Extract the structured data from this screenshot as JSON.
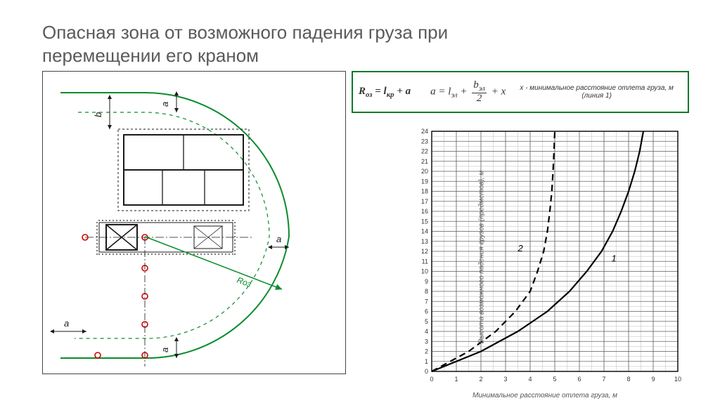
{
  "title": "Опасная зона от возможного падения груза при перемещении его краном",
  "formula_box": {
    "border_color": "#0a7a2a",
    "formula1_html": "R<span class='sub'>оз</span> = l<span class='sub'>кр</span> + a",
    "formula2_html": "a = l<span class='sub'>эл</span> + <span class='frac'><span class='n'>b<span class='sub'>эл</span></span><span class='d'>2</span></span> + x",
    "note": "x - минимальное расстояние отлета груза, м (линия 1)"
  },
  "plan": {
    "stroke": "#1a1a1a",
    "green": "#0a8c2e",
    "dim_label_a": "a",
    "dim_label_b": "b",
    "dim_label_roz": "Rоз",
    "marker_color": "#c00"
  },
  "chart": {
    "type": "line",
    "grid_color": "#666",
    "minor_grid_color": "#aaa",
    "background": "#ffffff",
    "x_label": "Минимальное расстояние отлета груза, м",
    "y_label": "Высота возможного падения грузов (предметов), м",
    "xlim": [
      0,
      10
    ],
    "ylim": [
      0,
      24
    ],
    "xticks": [
      0,
      1,
      2,
      3,
      4,
      5,
      6,
      7,
      8,
      9,
      10
    ],
    "yticks": [
      0,
      1,
      2,
      3,
      4,
      5,
      6,
      7,
      8,
      9,
      10,
      11,
      12,
      13,
      14,
      15,
      16,
      17,
      18,
      19,
      20,
      21,
      22,
      23,
      24
    ],
    "tick_fontsize": 9,
    "series": [
      {
        "label": "1",
        "style": "solid",
        "color": "#000",
        "width": 2.2,
        "points": [
          [
            0,
            0
          ],
          [
            2,
            2
          ],
          [
            3.5,
            4
          ],
          [
            4.7,
            6
          ],
          [
            5.6,
            8
          ],
          [
            6.3,
            10
          ],
          [
            6.9,
            12
          ],
          [
            7.35,
            14
          ],
          [
            7.7,
            16
          ],
          [
            8.0,
            18
          ],
          [
            8.25,
            20
          ],
          [
            8.45,
            22
          ],
          [
            8.6,
            24
          ]
        ]
      },
      {
        "label": "2",
        "style": "dashed",
        "color": "#000",
        "width": 2.2,
        "points": [
          [
            0,
            0
          ],
          [
            1.5,
            2
          ],
          [
            2.6,
            4
          ],
          [
            3.4,
            6
          ],
          [
            4.0,
            8
          ],
          [
            4.3,
            10
          ],
          [
            4.55,
            12
          ],
          [
            4.7,
            14
          ],
          [
            4.8,
            16
          ],
          [
            4.88,
            18
          ],
          [
            4.93,
            20
          ],
          [
            4.97,
            22
          ],
          [
            5.0,
            24
          ]
        ]
      }
    ],
    "label_fontsize": 13
  }
}
